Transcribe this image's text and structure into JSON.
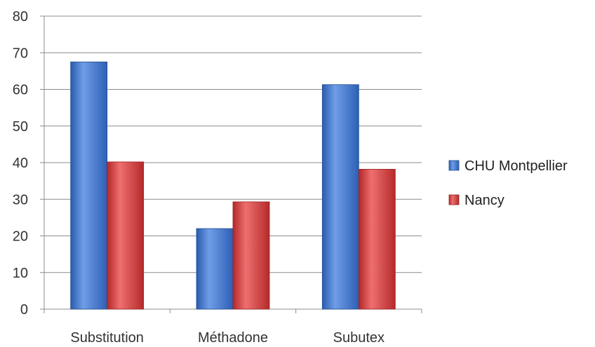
{
  "chart_data": {
    "type": "bar",
    "categories": [
      "Substitution",
      "Méthadone",
      "Subutex"
    ],
    "series": [
      {
        "name": "CHU Montpellier",
        "values": [
          67.5,
          22,
          61.3
        ],
        "color": "#3d73c8"
      },
      {
        "name": "Nancy",
        "values": [
          40.2,
          29.3,
          38.2
        ],
        "color": "#cf3b3b"
      }
    ],
    "ylim": [
      0,
      80
    ],
    "yticks": [
      0,
      10,
      20,
      30,
      40,
      50,
      60,
      70,
      80
    ],
    "grid": true,
    "legend_position": "right",
    "title": "",
    "xlabel": "",
    "ylabel": ""
  }
}
